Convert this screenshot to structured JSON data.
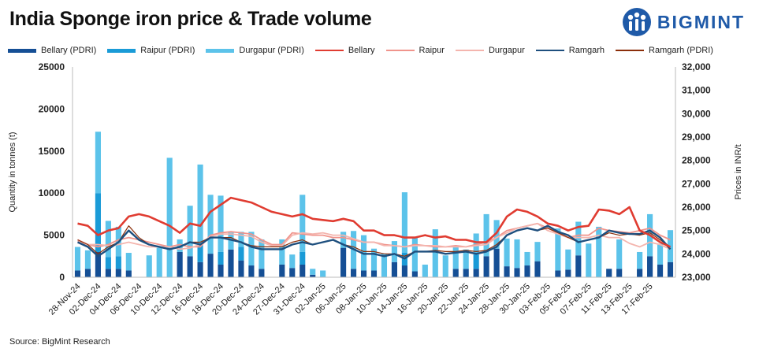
{
  "header": {
    "title": "India Sponge iron price & Trade volume"
  },
  "logo": {
    "text": "BIGMINT"
  },
  "source": "Source: BigMint Research",
  "colors": {
    "bellary_bar": "#154f95",
    "raipur_bar": "#1a9bd7",
    "durgapur_bar": "#5cc3ea",
    "bellary_line": "#e03c31",
    "raipur_line": "#f0948c",
    "durgapur_line": "#f4b5ae",
    "ramgarh_line": "#1e4f7e",
    "ramgarh_pdri_line": "#8b2e0a"
  },
  "legend": [
    {
      "label": "Bellary (PDRI)",
      "kind": "bar",
      "color_key": "bellary_bar"
    },
    {
      "label": "Raipur (PDRI)",
      "kind": "bar",
      "color_key": "raipur_bar"
    },
    {
      "label": "Durgapur (PDRI)",
      "kind": "bar",
      "color_key": "durgapur_bar"
    },
    {
      "label": "Bellary",
      "kind": "line",
      "color_key": "bellary_line"
    },
    {
      "label": "Raipur",
      "kind": "line",
      "color_key": "raipur_line"
    },
    {
      "label": "Durgapur",
      "kind": "line",
      "color_key": "durgapur_line"
    },
    {
      "label": "Ramgarh",
      "kind": "line",
      "color_key": "ramgarh_line"
    },
    {
      "label": "Ramgarh (PDRI)",
      "kind": "line",
      "color_key": "ramgarh_pdri_line"
    }
  ],
  "chart_data": {
    "type": "bar",
    "title": "India Sponge iron price & Trade volume",
    "ylabel": "Quantity in tonnes (t)",
    "y2label": "Prices in INR/t",
    "ylim": [
      0,
      25000
    ],
    "yticks": [
      0,
      5000,
      10000,
      15000,
      20000,
      25000
    ],
    "ytick_labels": [
      "0",
      "5000",
      "10000",
      "15000",
      "20000",
      "25000"
    ],
    "y2lim": [
      23000,
      32000
    ],
    "y2ticks": [
      23000,
      24000,
      25000,
      26000,
      27000,
      28000,
      29000,
      30000,
      31000,
      32000
    ],
    "y2tick_labels": [
      "23,000",
      "24,000",
      "25,000",
      "26,000",
      "27,000",
      "28,000",
      "29,000",
      "30,000",
      "31,000",
      "32,000"
    ],
    "n_points": 59,
    "x_tick_labels": [
      "28-Nov-24",
      "02-Dec-24",
      "04-Dec-24",
      "06-Dec-24",
      "10-Dec-24",
      "12-Dec-24",
      "16-Dec-24",
      "18-Dec-24",
      "20-Dec-24",
      "24-Dec-24",
      "27-Dec-24",
      "31-Dec-24",
      "02-Jan-25",
      "06-Jan-25",
      "08-Jan-25",
      "10-Jan-25",
      "14-Jan-25",
      "16-Jan-25",
      "20-Jan-25",
      "22-Jan-25",
      "24-Jan-25",
      "28-Jan-25",
      "30-Jan-25",
      "03-Feb-25",
      "05-Feb-25",
      "07-Feb-25",
      "11-Feb-25",
      "13-Feb-25",
      "17-Feb-25"
    ],
    "x_tick_index": [
      0,
      2,
      4,
      6,
      8,
      10,
      12,
      14,
      16,
      18,
      20,
      22,
      24,
      26,
      28,
      30,
      32,
      34,
      36,
      38,
      40,
      42,
      44,
      46,
      48,
      50,
      52,
      54,
      56
    ],
    "bar_series": [
      {
        "name": "Bellary (PDRI)",
        "color_key": "bellary_bar",
        "values": [
          800,
          1000,
          3000,
          1000,
          1000,
          800,
          0,
          0,
          0,
          0,
          3000,
          2500,
          1800,
          2800,
          1500,
          3300,
          2000,
          1400,
          1000,
          0,
          1500,
          1100,
          1500,
          300,
          0,
          0,
          3500,
          1000,
          800,
          800,
          0,
          1800,
          1400,
          700,
          0,
          0,
          0,
          1000,
          1000,
          1000,
          2500,
          3400,
          1300,
          1100,
          1400,
          1900,
          0,
          800,
          900,
          2600,
          0,
          0,
          1000,
          1000,
          0,
          1000,
          2500,
          1500,
          1800
        ]
      },
      {
        "name": "Raipur (PDRI)",
        "color_key": "raipur_bar",
        "values": [
          0,
          0,
          7000,
          1400,
          1500,
          0,
          0,
          0,
          0,
          0,
          0,
          0,
          2000,
          0,
          1500,
          0,
          1600,
          0,
          0,
          0,
          0,
          0,
          1500,
          0,
          0,
          0,
          0,
          0,
          0,
          0,
          0,
          0,
          1500,
          0,
          0,
          0,
          0,
          0,
          0,
          1700,
          0,
          0,
          0,
          0,
          0,
          0,
          0,
          0,
          0,
          0,
          0,
          0,
          0,
          0,
          0,
          0,
          0,
          0,
          0
        ]
      },
      {
        "name": "Durgapur (PDRI)",
        "color_key": "durgapur_bar",
        "values": [
          2800,
          2200,
          7300,
          4300,
          3500,
          2100,
          0,
          2600,
          3500,
          14200,
          1500,
          6000,
          9600,
          7000,
          6700,
          2000,
          1800,
          4000,
          3500,
          0,
          3000,
          1600,
          6800,
          700,
          800,
          0,
          1900,
          4500,
          4200,
          2600,
          2800,
          2500,
          7200,
          4000,
          1500,
          5700,
          2600,
          2700,
          2300,
          2500,
          5000,
          3400,
          3300,
          3400,
          1600,
          2300,
          0,
          5000,
          2400,
          4000,
          4000,
          6000,
          0,
          3500,
          0,
          2000,
          5000,
          2500,
          3800
        ]
      }
    ],
    "line_series": [
      {
        "name": "Bellary",
        "color_key": "bellary_line",
        "values": [
          25300,
          25200,
          24800,
          25000,
          25100,
          25600,
          25700,
          25600,
          25400,
          25200,
          24900,
          25300,
          25200,
          25800,
          26100,
          26400,
          26300,
          26200,
          26000,
          25800,
          25700,
          25600,
          25700,
          25500,
          25450,
          25400,
          25500,
          25400,
          25000,
          25000,
          24800,
          24800,
          24700,
          24700,
          24800,
          24700,
          24750,
          24600,
          24600,
          24500,
          24500,
          24900,
          25600,
          25900,
          25800,
          25600,
          25300,
          25200,
          25000,
          25150,
          25200,
          25900,
          25850,
          25700,
          26000,
          25000,
          24800,
          24500,
          24300
        ]
      },
      {
        "name": "Raipur",
        "color_key": "raipur_line",
        "values": [
          24600,
          24400,
          24300,
          24400,
          24600,
          24700,
          24600,
          24500,
          24400,
          24300,
          24400,
          24300,
          24300,
          24800,
          24900,
          24950,
          24900,
          24850,
          24600,
          24400,
          24400,
          24900,
          24850,
          24800,
          24800,
          24700,
          24700,
          24600,
          24500,
          24500,
          24400,
          24350,
          24300,
          24400,
          24350,
          24300,
          24300,
          24350,
          24300,
          24400,
          24500,
          24700,
          25000,
          25100,
          25200,
          25300,
          25100,
          24900,
          24700,
          24800,
          24800,
          25100,
          25000,
          24950,
          24900,
          25000,
          25100,
          24800,
          24600
        ]
      },
      {
        "name": "Durgapur",
        "color_key": "durgapur_line",
        "values": [
          24550,
          24400,
          24400,
          24350,
          24400,
          24500,
          24400,
          24300,
          24300,
          24300,
          24200,
          24250,
          24400,
          24750,
          24850,
          24850,
          24800,
          24750,
          24500,
          24350,
          24350,
          24800,
          24900,
          24850,
          24900,
          24800,
          24800,
          24650,
          24500,
          24500,
          24350,
          24350,
          24300,
          24350,
          24350,
          24350,
          24300,
          24300,
          24300,
          24350,
          24400,
          24700,
          24900,
          25100,
          25200,
          25300,
          25000,
          24850,
          24700,
          24700,
          24700,
          24800,
          24700,
          24700,
          24450,
          24300,
          24500,
          24400,
          24200
        ]
      },
      {
        "name": "Ramgarh",
        "color_key": "ramgarh_line",
        "values": [
          24500,
          24300,
          23900,
          24200,
          24500,
          25000,
          24600,
          24400,
          24300,
          24200,
          24300,
          24500,
          24400,
          24700,
          24700,
          24600,
          24500,
          24300,
          24200,
          24200,
          24200,
          24400,
          24500,
          24400,
          24500,
          24600,
          24400,
          24200,
          24000,
          24000,
          23900,
          24000,
          23800,
          24100,
          24100,
          24100,
          24000,
          24050,
          24100,
          24000,
          24100,
          24300,
          24800,
          25000,
          25100,
          25000,
          25200,
          24950,
          24800,
          24500,
          24600,
          24700,
          25000,
          24900,
          24850,
          24850,
          25000,
          24700,
          24200
        ]
      },
      {
        "name": "Ramgarh (PDRI)",
        "color_key": "ramgarh_pdri_line",
        "values": [
          24600,
          24400,
          24000,
          24300,
          24500,
          25200,
          24700,
          24400,
          24300,
          24200,
          24300,
          24500,
          24500,
          24700,
          24700,
          24700,
          24500,
          24350,
          24300,
          24300,
          24300,
          24500,
          24600,
          24400,
          24500,
          24600,
          24400,
          24300,
          24100,
          24100,
          24000,
          24000,
          23900,
          24100,
          24100,
          24150,
          24100,
          24100,
          24150,
          24100,
          24150,
          24400,
          24800,
          25000,
          25100,
          25000,
          25100,
          24900,
          24700,
          24500,
          24600,
          24700,
          24900,
          24800,
          24850,
          24800,
          24900,
          24600,
          24300
        ]
      }
    ]
  }
}
